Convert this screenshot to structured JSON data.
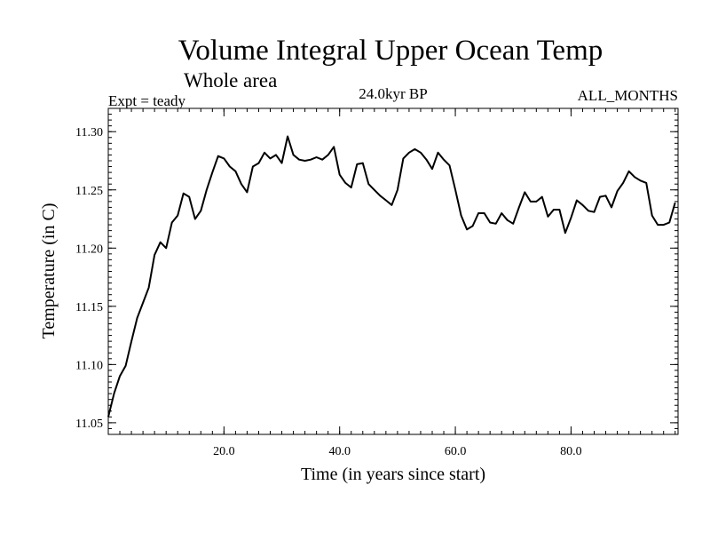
{
  "chart_data": {
    "type": "line",
    "title": "Volume Integral Upper Ocean Temp",
    "subtitle": "Whole area",
    "expt_label": "Expt = teady",
    "period_label": "24.0kyr BP",
    "months_label": "ALL_MONTHS",
    "xlabel": "Time (in years since start)",
    "ylabel": "Temperature (in C)",
    "xlim": [
      0,
      98.5
    ],
    "ylim": [
      11.04,
      11.32
    ],
    "x_ticks": [
      20,
      40,
      60,
      80
    ],
    "x_tick_labels": [
      "20.0",
      "40.0",
      "60.0",
      "80.0"
    ],
    "y_ticks": [
      11.05,
      11.1,
      11.15,
      11.2,
      11.25,
      11.3
    ],
    "y_tick_labels": [
      "11.05",
      "11.10",
      "11.15",
      "11.20",
      "11.25",
      "11.30"
    ],
    "grid": false,
    "line_color": "#000000",
    "series": [
      {
        "name": "Temperature",
        "x": [
          0,
          1,
          2,
          3,
          4,
          5,
          6,
          7,
          8,
          9,
          10,
          11,
          12,
          13,
          14,
          15,
          16,
          17,
          18,
          19,
          20,
          21,
          22,
          23,
          24,
          25,
          26,
          27,
          28,
          29,
          30,
          31,
          32,
          33,
          34,
          35,
          36,
          37,
          38,
          39,
          40,
          41,
          42,
          43,
          44,
          45,
          46,
          47,
          48,
          49,
          50,
          51,
          52,
          53,
          54,
          55,
          56,
          57,
          58,
          59,
          60,
          61,
          62,
          63,
          64,
          65,
          66,
          67,
          68,
          69,
          70,
          71,
          72,
          73,
          74,
          75,
          76,
          77,
          78,
          79,
          80,
          81,
          82,
          83,
          84,
          85,
          86,
          87,
          88,
          89,
          90,
          91,
          92,
          93,
          94,
          95,
          96,
          97,
          98
        ],
        "values": [
          11.055,
          11.075,
          11.09,
          11.099,
          11.12,
          11.14,
          11.153,
          11.166,
          11.194,
          11.205,
          11.2,
          11.222,
          11.228,
          11.247,
          11.244,
          11.225,
          11.232,
          11.25,
          11.265,
          11.279,
          11.277,
          11.27,
          11.266,
          11.255,
          11.248,
          11.27,
          11.273,
          11.282,
          11.277,
          11.28,
          11.273,
          11.296,
          11.28,
          11.276,
          11.275,
          11.276,
          11.278,
          11.276,
          11.28,
          11.287,
          11.263,
          11.256,
          11.252,
          11.272,
          11.273,
          11.255,
          11.25,
          11.245,
          11.241,
          11.237,
          11.25,
          11.277,
          11.282,
          11.285,
          11.282,
          11.276,
          11.268,
          11.282,
          11.276,
          11.271,
          11.25,
          11.228,
          11.216,
          11.219,
          11.23,
          11.23,
          11.222,
          11.221,
          11.23,
          11.224,
          11.221,
          11.235,
          11.248,
          11.24,
          11.24,
          11.244,
          11.227,
          11.233,
          11.233,
          11.213,
          11.226,
          11.241,
          11.237,
          11.232,
          11.231,
          11.244,
          11.245,
          11.235,
          11.249,
          11.256,
          11.266,
          11.261,
          11.258,
          11.256,
          11.228,
          11.22,
          11.22,
          11.222,
          11.239
        ]
      }
    ]
  }
}
